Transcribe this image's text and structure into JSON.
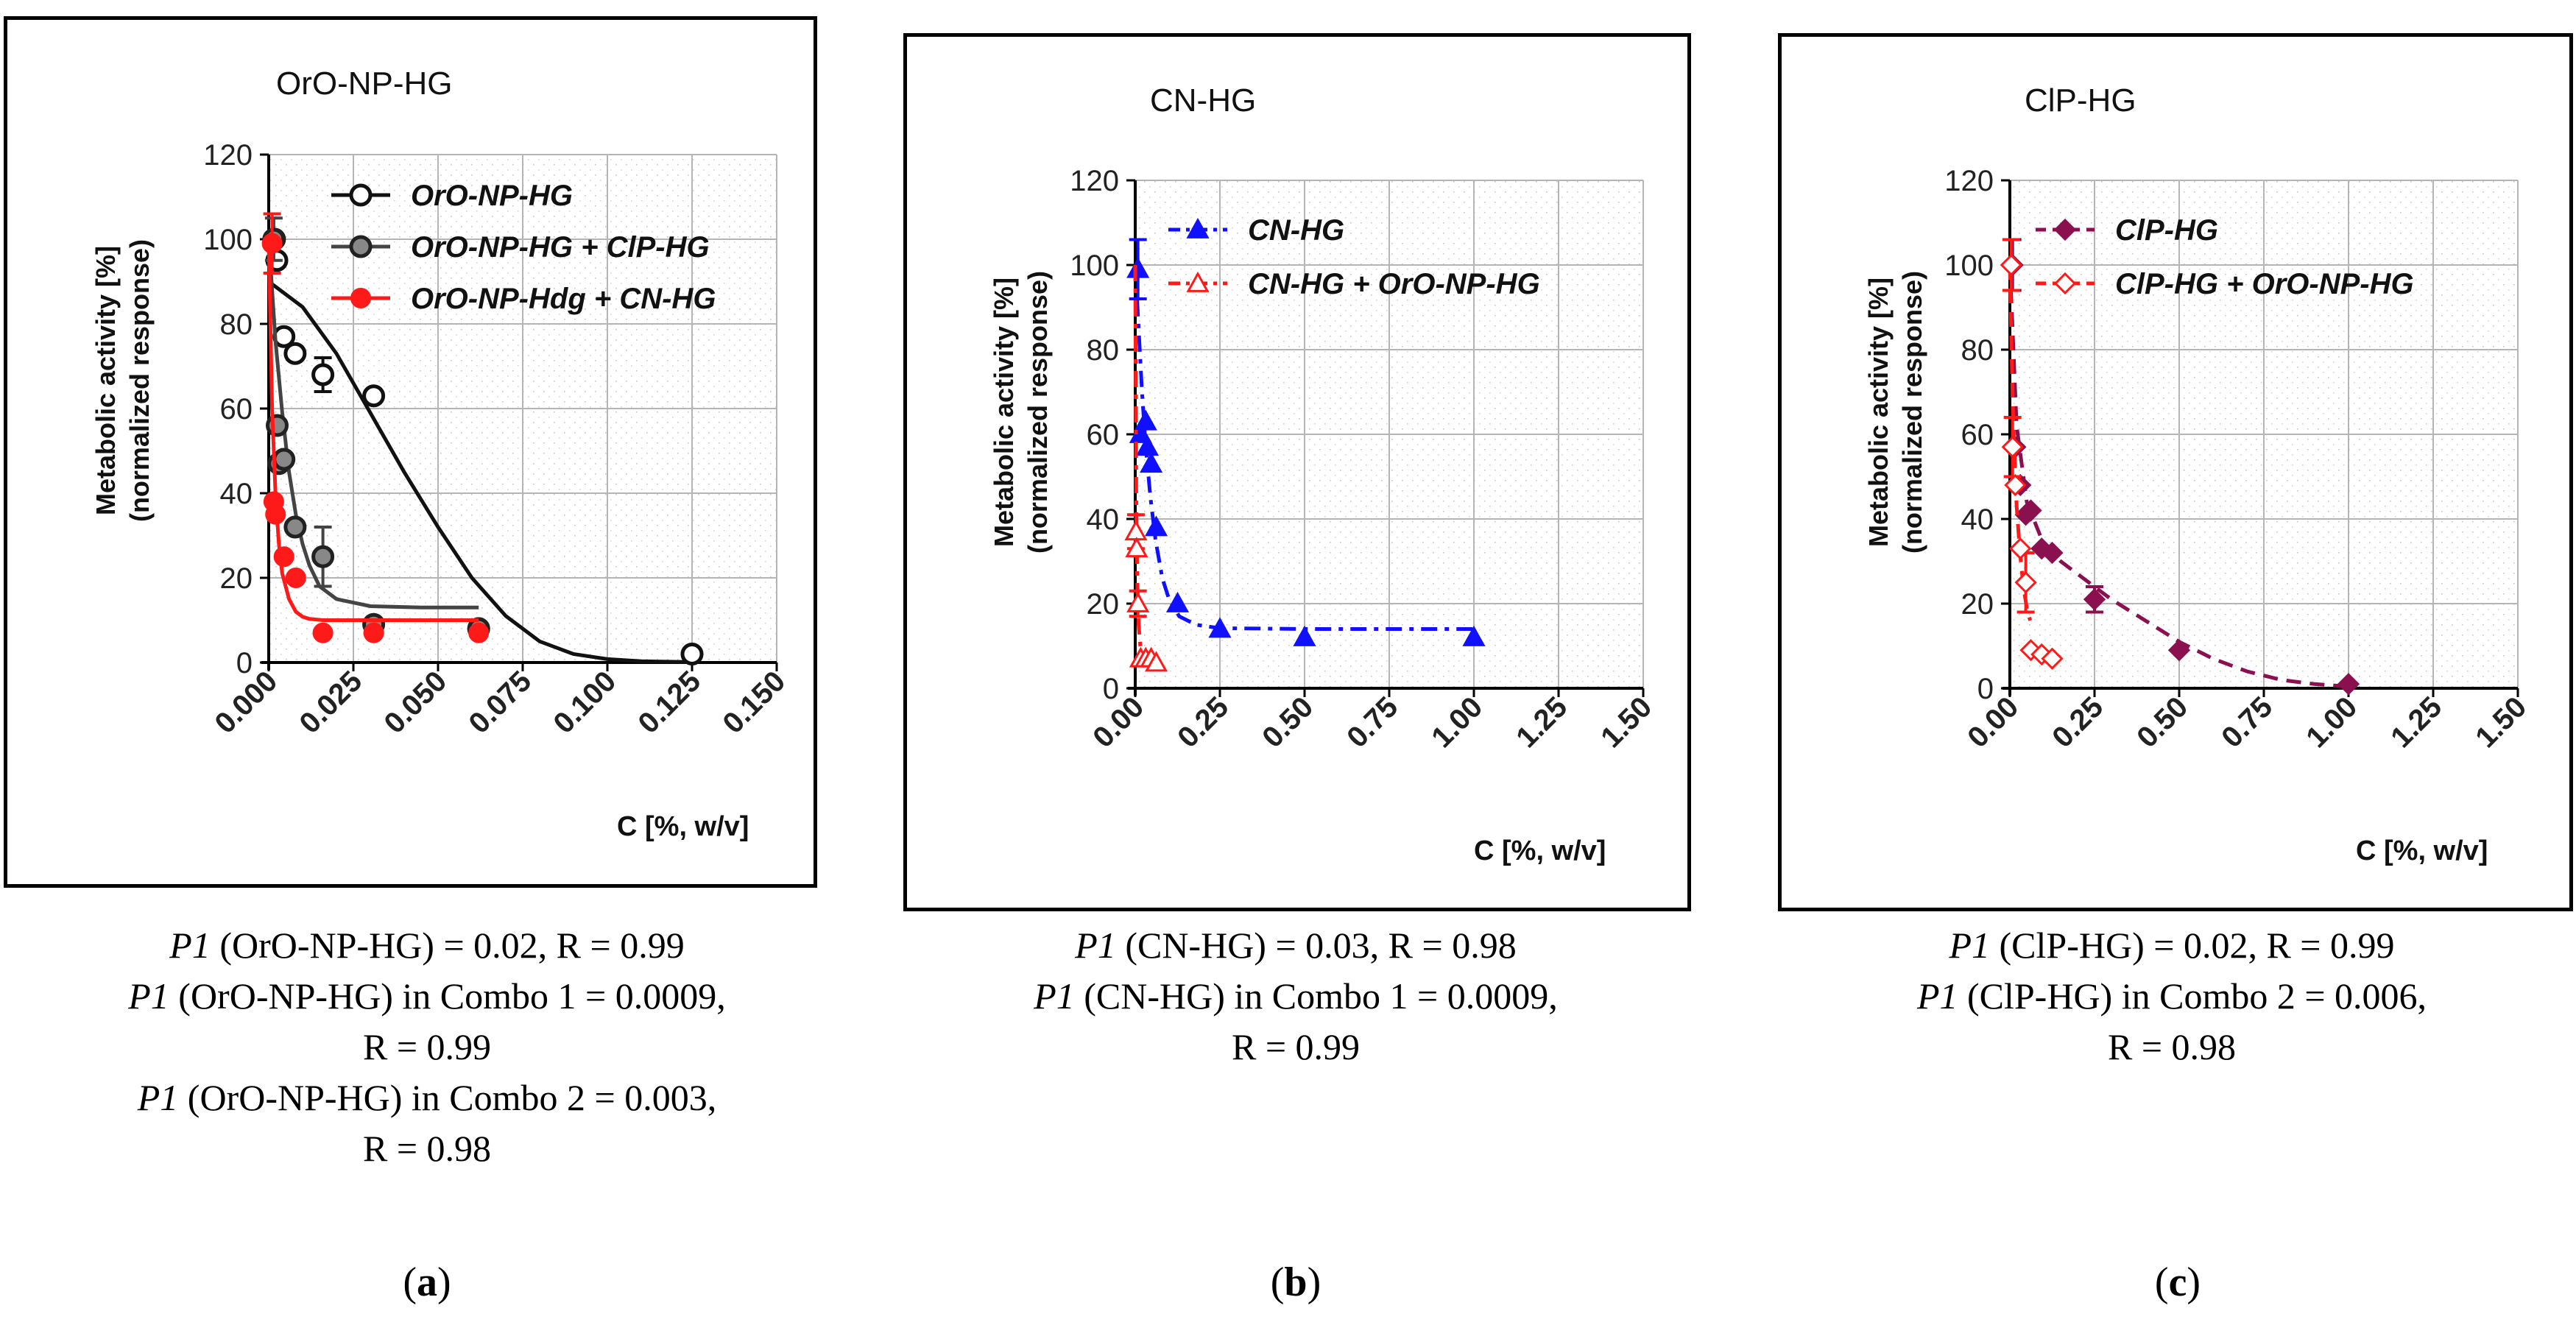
{
  "panels": [
    {
      "letter": "a",
      "title": "OrO-NP-HG",
      "ylabel_line1": "Metabolic activity [%]",
      "ylabel_line2": "(normalized response)",
      "xlabel": "C [%, w/v]",
      "caption": [
        {
          "italic": "P1",
          "text": " (OrO-NP-HG) = 0.02, R = 0.99"
        },
        {
          "italic": "P1",
          "text": " (OrO-NP-HG) in Combo 1 = 0.0009,"
        },
        {
          "italic": "",
          "text": "R = 0.99"
        },
        {
          "italic": "P1",
          "text": " (OrO-NP-HG) in Combo 2 = 0.003,"
        },
        {
          "italic": "",
          "text": "R = 0.98"
        }
      ]
    },
    {
      "letter": "b",
      "title": "CN-HG",
      "ylabel_line1": "Metabolic activity [%]",
      "ylabel_line2": "(normalized response)",
      "xlabel": "C [%, w/v]",
      "caption": [
        {
          "italic": "P1",
          "text": " (CN-HG) = 0.03, R = 0.98"
        },
        {
          "italic": "P1",
          "text": " (CN-HG) in Combo 1 = 0.0009,"
        },
        {
          "italic": "",
          "text": "R = 0.99"
        }
      ]
    },
    {
      "letter": "c",
      "title": "ClP-HG",
      "ylabel_line1": "Metabolic activity [%]",
      "ylabel_line2": "(normalized response)",
      "xlabel": "C [%, w/v]",
      "caption": [
        {
          "italic": "P1",
          "text": " (ClP-HG) = 0.02, R = 0.99"
        },
        {
          "italic": "P1",
          "text": " (ClP-HG) in Combo 2 = 0.006,"
        },
        {
          "italic": "",
          "text": "R = 0.98"
        }
      ]
    }
  ],
  "chart_data": [
    {
      "type": "scatter",
      "title": "OrO-NP-HG",
      "xlabel": "C [%, w/v]",
      "ylabel": "Metabolic activity [%] (normalized response)",
      "xlim": [
        0,
        0.15
      ],
      "ylim": [
        0,
        120
      ],
      "xticks": [
        "0.000",
        "0.025",
        "0.050",
        "0.075",
        "0.100",
        "0.125",
        "0.150"
      ],
      "xtick_values": [
        0,
        0.025,
        0.05,
        0.075,
        0.1,
        0.125,
        0.15
      ],
      "yticks": [
        0,
        20,
        40,
        60,
        80,
        100,
        120
      ],
      "legend_position": "top-right",
      "series": [
        {
          "name": "OrO-NP-HG",
          "color": "#111111",
          "marker": "open-circle",
          "fit": "solid",
          "x": [
            0.0017,
            0.0024,
            0.0045,
            0.0078,
            0.016,
            0.031,
            0.062,
            0.125
          ],
          "y": [
            100,
            95,
            77,
            73,
            68,
            63,
            8,
            2
          ],
          "err": [
            0,
            0,
            0,
            0,
            4,
            0,
            0,
            0
          ],
          "fit_x": [
            0,
            0.01,
            0.02,
            0.03,
            0.04,
            0.05,
            0.06,
            0.07,
            0.08,
            0.09,
            0.1,
            0.11,
            0.125
          ],
          "fit_y": [
            90,
            84,
            73,
            59,
            45,
            32,
            20,
            11,
            5,
            2,
            0.8,
            0.3,
            0.1
          ]
        },
        {
          "name": "OrO-NP-HG + ClP-HG",
          "color": "#444444",
          "marker": "gray-circle",
          "fit": "solid",
          "x": [
            0.0015,
            0.0025,
            0.003,
            0.0045,
            0.0078,
            0.016,
            0.031,
            0.062
          ],
          "y": [
            100,
            56,
            47,
            48,
            32,
            25,
            9,
            8
          ],
          "err": [
            5,
            0,
            0,
            0,
            0,
            7,
            0,
            0
          ],
          "fit_x": [
            0,
            0.002,
            0.004,
            0.006,
            0.008,
            0.01,
            0.012,
            0.015,
            0.02,
            0.03,
            0.045,
            0.062
          ],
          "fit_y": [
            100,
            76,
            59,
            45,
            35,
            28,
            23,
            18,
            15,
            13.3,
            13,
            13
          ]
        },
        {
          "name": "OrO-NP-Hdg + CN-HG",
          "color": "#ff1a1a",
          "marker": "filled-circle",
          "fit": "solid",
          "x": [
            0.001,
            0.0015,
            0.002,
            0.0045,
            0.008,
            0.016,
            0.031,
            0.062
          ],
          "y": [
            99,
            38,
            35,
            25,
            20,
            7,
            7,
            7
          ],
          "err": [
            7,
            0,
            0,
            0,
            0,
            0,
            0,
            0
          ],
          "fit_x": [
            0,
            0.001,
            0.002,
            0.003,
            0.004,
            0.006,
            0.008,
            0.01,
            0.012,
            0.016,
            0.03,
            0.062
          ],
          "fit_y": [
            100,
            60,
            40,
            28,
            21,
            15,
            12,
            10.8,
            10.3,
            10,
            10,
            10
          ]
        }
      ]
    },
    {
      "type": "scatter",
      "title": "CN-HG",
      "xlabel": "C [%, w/v]",
      "ylabel": "Metabolic activity [%] (normalized response)",
      "xlim": [
        0,
        1.5
      ],
      "ylim": [
        0,
        120
      ],
      "xticks": [
        "0.00",
        "0.25",
        "0.50",
        "0.75",
        "1.00",
        "1.25",
        "1.50"
      ],
      "xtick_values": [
        0,
        0.25,
        0.5,
        0.75,
        1,
        1.25,
        1.5
      ],
      "yticks": [
        0,
        20,
        40,
        60,
        80,
        100,
        120
      ],
      "legend_position": "top-right",
      "series": [
        {
          "name": "CN-HG",
          "color": "#1010ff",
          "marker": "filled-triangle",
          "fit": "dashdot",
          "x": [
            0.008,
            0.016,
            0.031,
            0.036,
            0.047,
            0.062,
            0.125,
            0.25,
            0.5,
            1.0
          ],
          "y": [
            99,
            60,
            63,
            57,
            53,
            38,
            20,
            14,
            12,
            12
          ],
          "err": [
            7,
            0,
            0,
            0,
            0,
            0,
            0,
            0,
            0,
            0
          ],
          "fit_x": [
            0,
            0.01,
            0.02,
            0.03,
            0.045,
            0.06,
            0.08,
            0.1,
            0.13,
            0.18,
            0.25,
            0.5,
            1.0
          ],
          "fit_y": [
            100,
            85,
            70,
            58,
            45,
            35,
            26,
            21,
            17,
            15,
            14.2,
            14,
            14
          ]
        },
        {
          "name": "CN-HG + OrO-NP-HG",
          "color": "#ff1a1a",
          "marker": "open-triangle",
          "fit": "dashdot",
          "x": [
            0.002,
            0.004,
            0.008,
            0.016,
            0.031,
            0.047,
            0.062
          ],
          "y": [
            37,
            33,
            20,
            7,
            7,
            7,
            6
          ],
          "err": [
            4,
            0,
            3,
            0,
            0,
            0,
            0
          ],
          "fit_x": [
            0,
            0.003,
            0.006,
            0.01,
            0.015,
            0.02,
            0.03,
            0.06
          ],
          "fit_y": [
            100,
            45,
            25,
            15,
            10,
            8,
            7,
            6.5
          ]
        }
      ]
    },
    {
      "type": "scatter",
      "title": "ClP-HG",
      "xlabel": "C [%, w/v]",
      "ylabel": "Metabolic activity [%] (normalized response)",
      "xlim": [
        0,
        1.5
      ],
      "ylim": [
        0,
        120
      ],
      "xticks": [
        "0.00",
        "0.25",
        "0.50",
        "0.75",
        "1.00",
        "1.25",
        "1.50"
      ],
      "xtick_values": [
        0,
        0.25,
        0.5,
        0.75,
        1,
        1.25,
        1.5
      ],
      "yticks": [
        0,
        20,
        40,
        60,
        80,
        100,
        120
      ],
      "legend_position": "top-right",
      "series": [
        {
          "name": "ClP-HG",
          "color": "#8b1050",
          "marker": "filled-diamond",
          "fit": "dashed",
          "x": [
            0.008,
            0.016,
            0.031,
            0.047,
            0.062,
            0.094,
            0.125,
            0.25,
            0.5,
            1.0
          ],
          "y": [
            100,
            57,
            48,
            41,
            42,
            33,
            32,
            21,
            9,
            1
          ],
          "err": [
            6,
            0,
            0,
            0,
            0,
            0,
            0,
            3,
            0,
            0
          ],
          "fit_x": [
            0,
            0.02,
            0.05,
            0.1,
            0.15,
            0.2,
            0.3,
            0.4,
            0.5,
            0.6,
            0.7,
            0.8,
            0.9,
            1.0
          ],
          "fit_y": [
            100,
            62,
            44,
            34,
            30,
            27,
            21,
            16,
            11,
            7,
            4,
            2,
            1,
            0.4
          ]
        },
        {
          "name": "ClP-HG + OrO-NP-HG",
          "color": "#ff1a1a",
          "marker": "open-diamond",
          "fit": "dashed",
          "x": [
            0.004,
            0.008,
            0.016,
            0.031,
            0.047,
            0.062,
            0.094,
            0.125
          ],
          "y": [
            100,
            57,
            48,
            33,
            25,
            9,
            8,
            7
          ],
          "err": [
            6,
            7,
            0,
            0,
            7,
            0,
            0,
            0
          ],
          "fit_x": [
            0,
            0.005,
            0.01,
            0.02,
            0.03,
            0.04,
            0.05,
            0.06
          ],
          "fit_y": [
            100,
            80,
            63,
            43,
            32,
            24,
            19,
            16
          ]
        }
      ]
    }
  ]
}
